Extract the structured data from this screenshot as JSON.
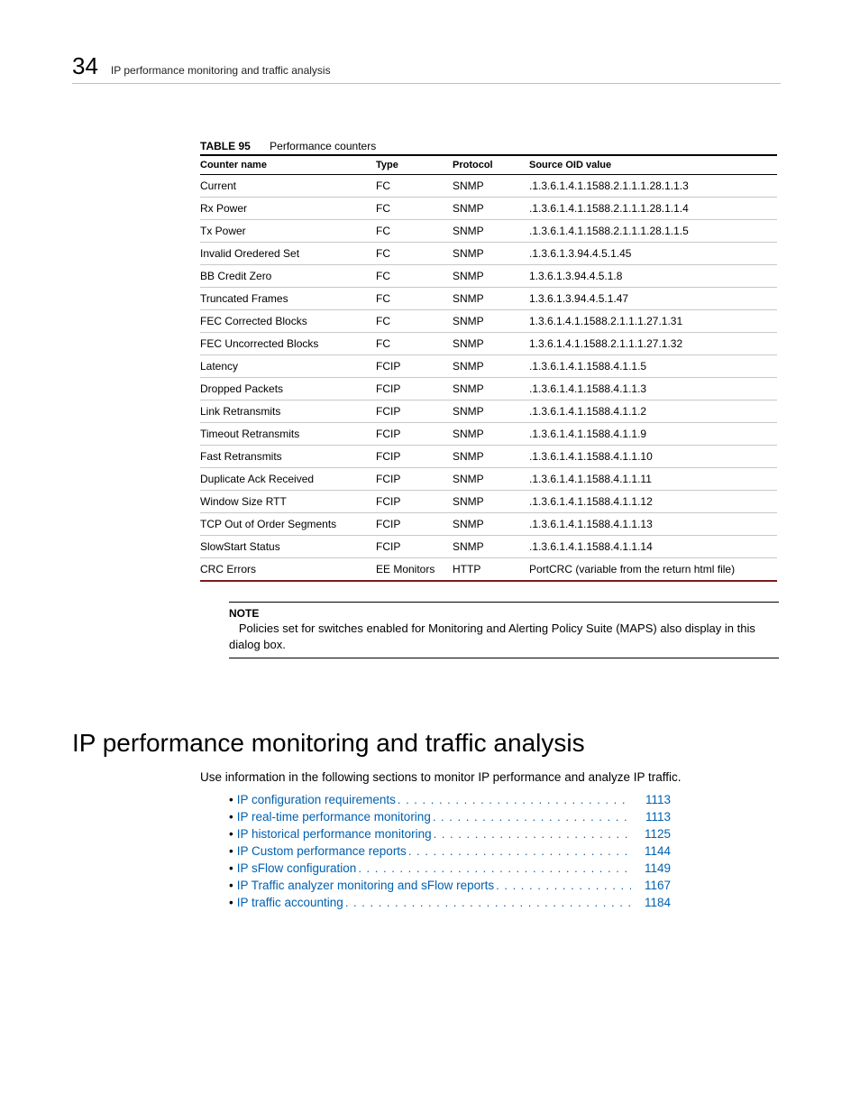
{
  "header": {
    "page_number": "34",
    "running_title": "IP performance monitoring and traffic analysis"
  },
  "table": {
    "label": "TABLE 95",
    "caption": "Performance counters",
    "columns": [
      "Counter name",
      "Type",
      "Protocol",
      "Source OID value"
    ],
    "rows": [
      [
        "Current",
        "FC",
        "SNMP",
        ".1.3.6.1.4.1.1588.2.1.1.1.28.1.1.3"
      ],
      [
        "Rx Power",
        "FC",
        "SNMP",
        ".1.3.6.1.4.1.1588.2.1.1.1.28.1.1.4"
      ],
      [
        "Tx Power",
        "FC",
        "SNMP",
        ".1.3.6.1.4.1.1588.2.1.1.1.28.1.1.5"
      ],
      [
        "Invalid Oredered Set",
        "FC",
        "SNMP",
        ".1.3.6.1.3.94.4.5.1.45"
      ],
      [
        "BB Credit Zero",
        "FC",
        "SNMP",
        "1.3.6.1.3.94.4.5.1.8"
      ],
      [
        "Truncated Frames",
        "FC",
        "SNMP",
        "1.3.6.1.3.94.4.5.1.47"
      ],
      [
        "FEC Corrected Blocks",
        "FC",
        "SNMP",
        "1.3.6.1.4.1.1588.2.1.1.1.27.1.31"
      ],
      [
        "FEC Uncorrected Blocks",
        "FC",
        "SNMP",
        "1.3.6.1.4.1.1588.2.1.1.1.27.1.32"
      ],
      [
        "Latency",
        "FCIP",
        "SNMP",
        ".1.3.6.1.4.1.1588.4.1.1.5"
      ],
      [
        "Dropped Packets",
        "FCIP",
        "SNMP",
        ".1.3.6.1.4.1.1588.4.1.1.3"
      ],
      [
        "Link Retransmits",
        "FCIP",
        "SNMP",
        ".1.3.6.1.4.1.1588.4.1.1.2"
      ],
      [
        "Timeout Retransmits",
        "FCIP",
        "SNMP",
        ".1.3.6.1.4.1.1588.4.1.1.9"
      ],
      [
        "Fast Retransmits",
        "FCIP",
        "SNMP",
        ".1.3.6.1.4.1.1588.4.1.1.10"
      ],
      [
        "Duplicate Ack Received",
        "FCIP",
        "SNMP",
        ".1.3.6.1.4.1.1588.4.1.1.11"
      ],
      [
        "Window Size RTT",
        "FCIP",
        "SNMP",
        ".1.3.6.1.4.1.1588.4.1.1.12"
      ],
      [
        "TCP Out of Order Segments",
        "FCIP",
        "SNMP",
        ".1.3.6.1.4.1.1588.4.1.1.13"
      ],
      [
        "SlowStart Status",
        "FCIP",
        "SNMP",
        ".1.3.6.1.4.1.1588.4.1.1.14"
      ],
      [
        "CRC Errors",
        "EE Monitors",
        "HTTP",
        "PortCRC (variable from the return html file)"
      ]
    ]
  },
  "note": {
    "label": "NOTE",
    "text": "Policies set for switches enabled for Monitoring and Alerting Policy Suite (MAPS) also display in this dialog box."
  },
  "section": {
    "title": "IP performance monitoring and traffic analysis",
    "intro": "Use information in the following sections to monitor IP performance and analyze IP traffic."
  },
  "toc": [
    {
      "title": "IP configuration requirements",
      "page": "1113"
    },
    {
      "title": "IP real-time performance monitoring",
      "page": "1113"
    },
    {
      "title": "IP historical performance monitoring",
      "page": "1125"
    },
    {
      "title": "IP Custom performance reports",
      "page": "1144"
    },
    {
      "title": "IP sFlow configuration",
      "page": "1149"
    },
    {
      "title": "IP Traffic analyzer monitoring and sFlow reports",
      "page": "1167"
    },
    {
      "title": "IP traffic accounting",
      "page": "1184"
    }
  ],
  "style": {
    "link_color": "#0060b0",
    "table_bottom_accent": "#7a1c1c"
  }
}
